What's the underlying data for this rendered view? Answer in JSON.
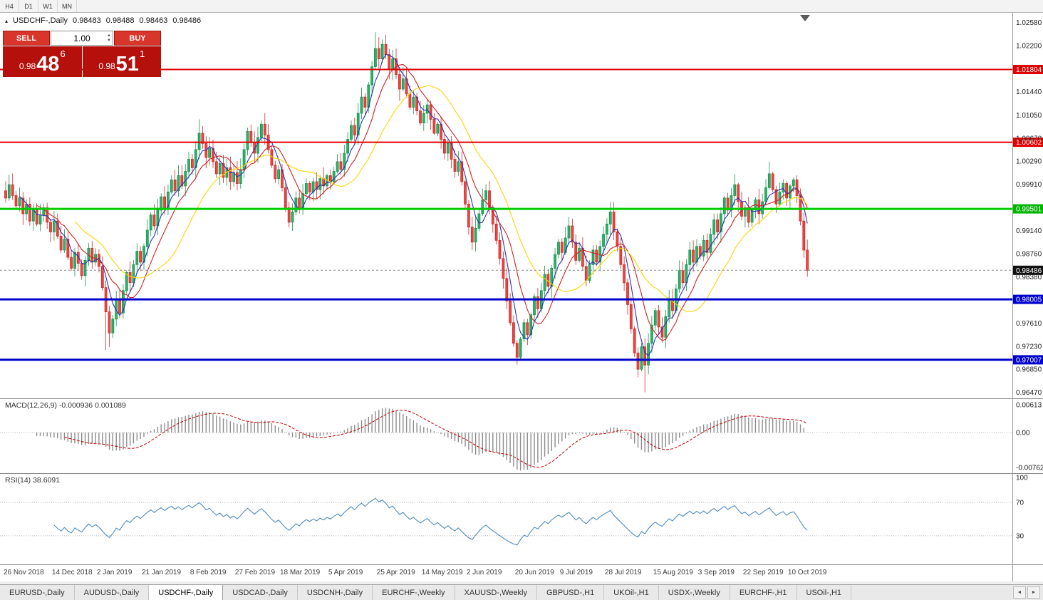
{
  "toolbar": {
    "timeframes": [
      "H4",
      "D1",
      "W1",
      "MN"
    ]
  },
  "icons": {
    "collapse": "▴",
    "volume_up": "▲",
    "volume_down": "▼",
    "tab_scroll_left": "◄",
    "tab_scroll_right": "►"
  },
  "chart_header": {
    "symbol": "USDCHF-,Daily",
    "open": "0.98483",
    "high": "0.98488",
    "low": "0.98463",
    "close": "0.98486"
  },
  "trade_panel": {
    "sell_label": "SELL",
    "buy_label": "BUY",
    "volume": "1.00",
    "sell_price": {
      "base": "0.98",
      "pips": "48",
      "point": "6"
    },
    "buy_price": {
      "base": "0.98",
      "pips": "51",
      "point": "1"
    }
  },
  "indicator_labels": {
    "macd": "MACD(12,26,9) -0.000936 0.001089",
    "rsi": "RSI(14) 38.6091"
  },
  "chart_data": {
    "type": "candlestick",
    "symbol": "USDCHF",
    "timeframe": "Daily",
    "y_range": {
      "top": 1.0274,
      "bottom": 0.9637
    },
    "bid": 0.98486,
    "colors": {
      "up": "#29b36a",
      "up_border": "#17934f",
      "down": "#f04441",
      "down_border": "#cf2b28",
      "level_red": "#e10000",
      "level_green": "#00cc00",
      "level_blue": "#0000cc",
      "macd_hist": "#8c8c8c",
      "macd_signal": "#c40000",
      "rsi_line": "#4e8cc2"
    },
    "moving_averages": [
      {
        "period": 5,
        "color": "#2b32b2"
      },
      {
        "period": 10,
        "color": "#d42020"
      },
      {
        "period": 21,
        "color": "#ffd500"
      }
    ],
    "levels": [
      {
        "value": 1.01804,
        "color": "#e10000",
        "width": 2
      },
      {
        "value": 1.00602,
        "color": "#e10000",
        "width": 2
      },
      {
        "value": 0.99501,
        "color": "#00cc00",
        "width": 3
      },
      {
        "value": 0.98005,
        "color": "#0000cc",
        "width": 3
      },
      {
        "value": 0.97007,
        "color": "#0000cc",
        "width": 3
      }
    ],
    "badges": [
      {
        "text": "1.01804",
        "value": 1.01804,
        "color": "#e10000"
      },
      {
        "text": "1.00602",
        "value": 1.00602,
        "color": "#e10000"
      },
      {
        "text": "0.99501",
        "value": 0.99501,
        "color": "#00b400"
      },
      {
        "text": "0.98486",
        "value": 0.98486,
        "color": "#111111"
      },
      {
        "text": "0.98005",
        "value": 0.98005,
        "color": "#0000cc"
      },
      {
        "text": "0.97007",
        "value": 0.97007,
        "color": "#0000cc"
      }
    ],
    "scale_labels": [
      "1.02580",
      "1.02200",
      "1.01440",
      "1.01050",
      "1.00670",
      "1.00290",
      "0.99910",
      "0.99140",
      "0.98760",
      "0.98380",
      "0.97610",
      "0.97230",
      "0.96850",
      "0.96470"
    ],
    "x_labels": [
      {
        "label": "26 Nov 2018",
        "i": 0
      },
      {
        "label": "14 Dec 2018",
        "i": 14
      },
      {
        "label": "2 Jan 2019",
        "i": 27
      },
      {
        "label": "21 Jan 2019",
        "i": 40
      },
      {
        "label": "8 Feb 2019",
        "i": 54
      },
      {
        "label": "27 Feb 2019",
        "i": 67
      },
      {
        "label": "18 Mar 2019",
        "i": 80
      },
      {
        "label": "5 Apr 2019",
        "i": 94
      },
      {
        "label": "25 Apr 2019",
        "i": 108
      },
      {
        "label": "14 May 2019",
        "i": 121
      },
      {
        "label": "2 Jun 2019",
        "i": 134
      },
      {
        "label": "20 Jun 2019",
        "i": 148
      },
      {
        "label": "9 Jul 2019",
        "i": 161
      },
      {
        "label": "28 Jul 2019",
        "i": 174
      },
      {
        "label": "15 Aug 2019",
        "i": 188
      },
      {
        "label": "3 Sep 2019",
        "i": 201
      },
      {
        "label": "22 Sep 2019",
        "i": 214
      },
      {
        "label": "10 Oct 2019",
        "i": 227
      }
    ],
    "indicators": {
      "macd": {
        "fast": 12,
        "slow": 26,
        "signal": 9,
        "scale": [
          "0.00613",
          "0.00",
          "-0.00762"
        ]
      },
      "rsi": {
        "period": 14,
        "levels": [
          70,
          30
        ],
        "scale": [
          "100",
          "70",
          "30"
        ]
      }
    },
    "closes": [
      0.9968,
      0.999,
      0.9972,
      0.9955,
      0.9968,
      0.9942,
      0.9958,
      0.993,
      0.9948,
      0.9925,
      0.994,
      0.9952,
      0.9928,
      0.9912,
      0.993,
      0.9905,
      0.9882,
      0.99,
      0.987,
      0.9852,
      0.9878,
      0.986,
      0.984,
      0.9865,
      0.9885,
      0.9862,
      0.9875,
      0.9855,
      0.982,
      0.978,
      0.9745,
      0.9768,
      0.98,
      0.9778,
      0.9815,
      0.9845,
      0.9828,
      0.9858,
      0.988,
      0.9862,
      0.9888,
      0.9915,
      0.994,
      0.9922,
      0.9948,
      0.997,
      0.9952,
      0.9978,
      0.9998,
      0.998,
      1.0005,
      0.9988,
      1.0012,
      1.0032,
      1.0018,
      1.0048,
      1.0075,
      1.0058,
      1.0035,
      1.005,
      1.0028,
      1.0008,
      1.0025,
      1.0002,
      1.0018,
      0.9995,
      1.001,
      0.9992,
      1.0015,
      1.0048,
      1.0078,
      1.006,
      1.0042,
      1.0068,
      1.009,
      1.0072,
      1.0048,
      1.0022,
      1.0,
      1.0015,
      0.9985,
      0.9952,
      0.9928,
      0.9945,
      0.9968,
      0.995,
      0.9975,
      0.9992,
      0.9978,
      0.9995,
      0.9982,
      1.0,
      0.9988,
      1.0005,
      0.9995,
      1.0012,
      1.0028,
      1.0015,
      1.0042,
      1.0065,
      1.0088,
      1.0072,
      1.0108,
      1.0135,
      1.0118,
      1.0155,
      1.0185,
      1.0215,
      1.0198,
      1.0222,
      1.0205,
      1.018,
      1.0198,
      1.0172,
      1.0148,
      1.0165,
      1.014,
      1.0118,
      1.0135,
      1.0112,
      1.0092,
      1.0108,
      1.0122,
      1.0098,
      1.0075,
      1.009,
      1.0065,
      1.0042,
      1.0058,
      1.0032,
      1.0012,
      1.0028,
      0.9995,
      0.9958,
      0.992,
      0.9895,
      0.9918,
      0.9942,
      0.9965,
      0.998,
      0.9952,
      0.9925,
      0.9898,
      0.9868,
      0.9835,
      0.9798,
      0.9762,
      0.9728,
      0.9705,
      0.9735,
      0.9762,
      0.9742,
      0.9775,
      0.9805,
      0.9785,
      0.9815,
      0.9842,
      0.9822,
      0.9852,
      0.9875,
      0.9895,
      0.9878,
      0.9902,
      0.9922,
      0.9895,
      0.9865,
      0.9885,
      0.9855,
      0.9832,
      0.9858,
      0.9882,
      0.9862,
      0.9888,
      0.9908,
      0.9925,
      0.9945,
      0.9912,
      0.9888,
      0.9858,
      0.9828,
      0.9792,
      0.9752,
      0.9712,
      0.9685,
      0.9722,
      0.9692,
      0.9728,
      0.9758,
      0.9782,
      0.9755,
      0.9738,
      0.9772,
      0.9802,
      0.9782,
      0.9818,
      0.9848,
      0.9828,
      0.9858,
      0.9882,
      0.9862,
      0.9888,
      0.9872,
      0.9898,
      0.9878,
      0.9908,
      0.9932,
      0.9912,
      0.9942,
      0.9968,
      0.9948,
      0.9972,
      0.999,
      0.9962,
      0.9938,
      0.9952,
      0.9928,
      0.9948,
      0.9965,
      0.9942,
      0.9962,
      0.9985,
      1.0008,
      0.9982,
      0.9958,
      0.9978,
      0.9992,
      0.9968,
      0.9988,
      0.9998,
      0.9972,
      0.993,
      0.9882,
      0.98486
    ],
    "wick_overrides": {
      "29": {
        "low": 0.9717
      },
      "30": {
        "low": 0.9722
      },
      "56": {
        "high": 1.0098
      },
      "74": {
        "high": 1.0096
      },
      "107": {
        "high": 1.0242
      },
      "109": {
        "high": 1.023
      },
      "148": {
        "low": 0.9693
      },
      "175": {
        "high": 0.9962
      },
      "185": {
        "low": 0.9647
      },
      "221": {
        "high": 1.0028
      },
      "232": {
        "low": 0.9838
      }
    }
  },
  "tabs": {
    "items": [
      {
        "label": "EURUSD-,Daily"
      },
      {
        "label": "AUDUSD-,Daily"
      },
      {
        "label": "USDCHF-,Daily",
        "active": true
      },
      {
        "label": "USDCAD-,Daily"
      },
      {
        "label": "USDCNH-,Daily"
      },
      {
        "label": "EURCHF-,Weekly"
      },
      {
        "label": "XAUUSD-,Weekly"
      },
      {
        "label": "GBPUSD-,H1"
      },
      {
        "label": "UKOil-,H1"
      },
      {
        "label": "USDX-,Weekly"
      },
      {
        "label": "EURCHF-,H1"
      },
      {
        "label": "USOil-,H1"
      }
    ]
  }
}
